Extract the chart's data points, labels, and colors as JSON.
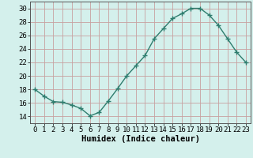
{
  "x": [
    0,
    1,
    2,
    3,
    4,
    5,
    6,
    7,
    8,
    9,
    10,
    11,
    12,
    13,
    14,
    15,
    16,
    17,
    18,
    19,
    20,
    21,
    22,
    23
  ],
  "y": [
    18,
    17,
    16.2,
    16.1,
    15.7,
    15.2,
    14.1,
    14.6,
    16.3,
    18.1,
    20.0,
    21.5,
    23.0,
    25.5,
    27.0,
    28.5,
    29.2,
    30.0,
    30.0,
    29.0,
    27.5,
    25.5,
    23.5,
    22.0
  ],
  "line_color": "#2e7d6e",
  "marker": "+",
  "marker_size": 4,
  "marker_lw": 1.0,
  "line_width": 1.0,
  "bg_color": "#d4f0ec",
  "grid_color": "#c8a0a0",
  "xlabel": "Humidex (Indice chaleur)",
  "xlim": [
    -0.5,
    23.5
  ],
  "ylim": [
    13.0,
    31.0
  ],
  "yticks": [
    14,
    16,
    18,
    20,
    22,
    24,
    26,
    28,
    30
  ],
  "xticks": [
    0,
    1,
    2,
    3,
    4,
    5,
    6,
    7,
    8,
    9,
    10,
    11,
    12,
    13,
    14,
    15,
    16,
    17,
    18,
    19,
    20,
    21,
    22,
    23
  ],
  "xlabel_fontsize": 7.5,
  "tick_fontsize": 6.5
}
